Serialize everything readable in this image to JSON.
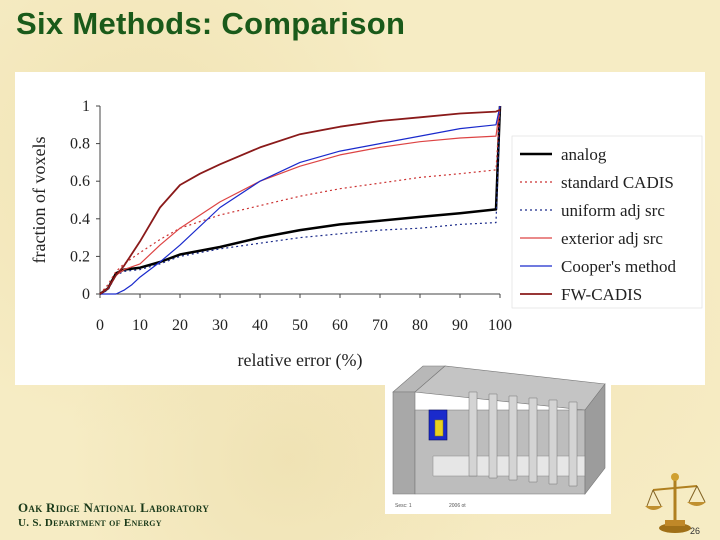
{
  "slide": {
    "title": "Six Methods: Comparison",
    "footer_lab": "Oak Ridge National Laboratory",
    "footer_doe": "U. S. Department of Energy",
    "page_number": "26"
  },
  "model_caption": {
    "left": "Sesc: 1",
    "right": "2006 ot"
  },
  "chart_data": {
    "type": "line",
    "xlabel": "relative error (%)",
    "ylabel": "fraction of voxels",
    "xlim": [
      0,
      100
    ],
    "ylim": [
      0,
      1
    ],
    "xticks": [
      "0",
      "10",
      "20",
      "30",
      "40",
      "50",
      "60",
      "70",
      "80",
      "90",
      "100"
    ],
    "yticks": [
      "0",
      "0.2",
      "0.4",
      "0.6",
      "0.8",
      "1"
    ],
    "grid": false,
    "legend_position": "right",
    "series": [
      {
        "name": "analog",
        "color": "#000000",
        "dash": "solid",
        "width": 2.5,
        "x": [
          0,
          2,
          4,
          6,
          10,
          15,
          20,
          30,
          40,
          50,
          60,
          70,
          80,
          90,
          99,
          100
        ],
        "y": [
          0,
          0.03,
          0.11,
          0.13,
          0.14,
          0.17,
          0.21,
          0.25,
          0.3,
          0.34,
          0.37,
          0.39,
          0.41,
          0.43,
          0.45,
          1.0
        ]
      },
      {
        "name": "standard CADIS",
        "color": "#cc3333",
        "dash": "dot",
        "width": 1.2,
        "x": [
          0,
          2,
          4,
          6,
          10,
          15,
          20,
          30,
          40,
          50,
          60,
          70,
          80,
          90,
          99,
          100
        ],
        "y": [
          0,
          0.05,
          0.12,
          0.16,
          0.22,
          0.29,
          0.35,
          0.42,
          0.47,
          0.52,
          0.56,
          0.59,
          0.62,
          0.64,
          0.66,
          1.0
        ]
      },
      {
        "name": "uniform adj src",
        "color": "#1a2a8a",
        "dash": "dot",
        "width": 1.2,
        "x": [
          0,
          2,
          4,
          6,
          10,
          15,
          20,
          30,
          40,
          50,
          60,
          70,
          80,
          90,
          99,
          100
        ],
        "y": [
          0,
          0.02,
          0.1,
          0.12,
          0.13,
          0.16,
          0.2,
          0.24,
          0.27,
          0.3,
          0.32,
          0.34,
          0.35,
          0.37,
          0.38,
          1.0
        ]
      },
      {
        "name": "exterior adj src",
        "color": "#dd4444",
        "dash": "solid",
        "width": 1.2,
        "x": [
          0,
          2,
          4,
          6,
          10,
          15,
          20,
          30,
          40,
          50,
          60,
          70,
          80,
          90,
          99,
          100
        ],
        "y": [
          0,
          0.03,
          0.1,
          0.13,
          0.16,
          0.26,
          0.35,
          0.49,
          0.6,
          0.68,
          0.74,
          0.78,
          0.81,
          0.83,
          0.84,
          1.0
        ]
      },
      {
        "name": "Cooper's method",
        "color": "#1a2acc",
        "dash": "solid",
        "width": 1.2,
        "x": [
          0,
          4,
          6,
          8,
          10,
          15,
          20,
          30,
          40,
          50,
          60,
          70,
          80,
          90,
          99,
          100
        ],
        "y": [
          0,
          0,
          0.02,
          0.05,
          0.09,
          0.17,
          0.26,
          0.46,
          0.6,
          0.7,
          0.76,
          0.8,
          0.84,
          0.88,
          0.9,
          1.0
        ]
      },
      {
        "name": "FW-CADIS",
        "color": "#8a1a1a",
        "dash": "solid",
        "width": 1.8,
        "x": [
          0,
          2,
          4,
          6,
          10,
          15,
          20,
          25,
          30,
          40,
          50,
          60,
          70,
          80,
          90,
          99,
          100
        ],
        "y": [
          0,
          0.03,
          0.1,
          0.15,
          0.28,
          0.46,
          0.58,
          0.64,
          0.69,
          0.78,
          0.85,
          0.89,
          0.92,
          0.94,
          0.96,
          0.97,
          0.98
        ]
      }
    ]
  }
}
